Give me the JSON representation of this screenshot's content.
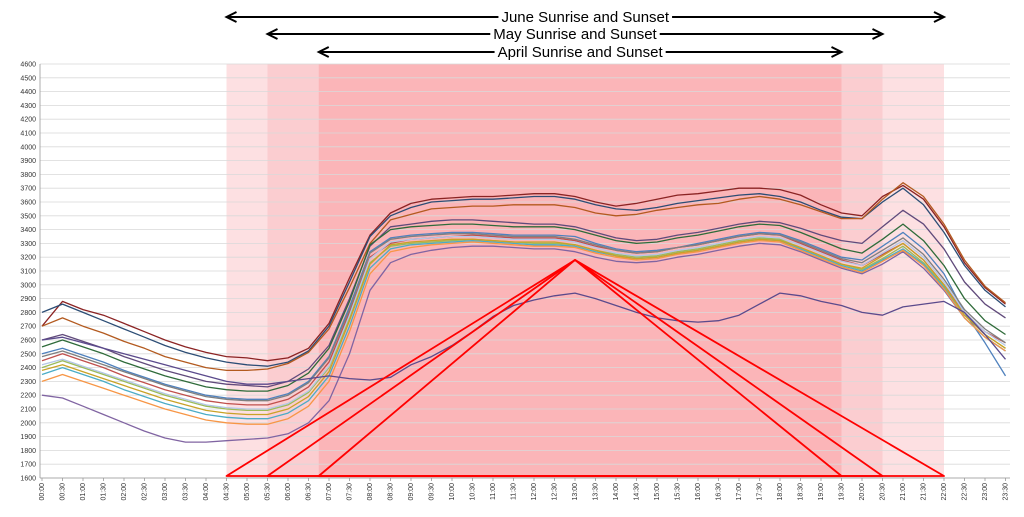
{
  "chart_data": {
    "type": "line",
    "title": "",
    "xlabel": "",
    "ylabel": "",
    "ylim": [
      1600,
      4600
    ],
    "y_ticks": [
      1600,
      1700,
      1800,
      1900,
      2000,
      2100,
      2200,
      2300,
      2400,
      2500,
      2600,
      2700,
      2800,
      2900,
      3000,
      3100,
      3200,
      3300,
      3400,
      3500,
      3600,
      3700,
      3800,
      3900,
      4000,
      4100,
      4200,
      4300,
      4400,
      4500,
      4600
    ],
    "x_ticks": [
      "00:00",
      "00:30",
      "01:00",
      "01:30",
      "02:00",
      "02:30",
      "03:00",
      "03:30",
      "04:00",
      "04:30",
      "05:00",
      "05:30",
      "06:00",
      "06:30",
      "07:00",
      "07:30",
      "08:00",
      "08:30",
      "09:00",
      "09:30",
      "10:00",
      "10:30",
      "11:00",
      "11:30",
      "12:00",
      "12:30",
      "13:00",
      "13:30",
      "14:00",
      "14:30",
      "15:00",
      "15:30",
      "16:00",
      "16:30",
      "17:00",
      "17:30",
      "18:00",
      "18:30",
      "19:00",
      "19:30",
      "20:00",
      "20:30",
      "21:00",
      "21:30",
      "22:00",
      "22:30",
      "23:00",
      "23:30"
    ],
    "grid": true,
    "legend": "none",
    "colors": {
      "june_band": "#fde0e2",
      "may_band": "#fbcdd0",
      "april_band": "#fbb5b8",
      "triangle": "#ff0000",
      "arrow": "#000000",
      "gridline": "#d9d9d9"
    },
    "bands": [
      {
        "label": "June Sunrise and Sunset",
        "start": "04:30",
        "end": "22:00",
        "peak": "13:00"
      },
      {
        "label": "May Sunrise and Sunset",
        "start": "05:30",
        "end": "20:30",
        "peak": "13:00"
      },
      {
        "label": "April Sunrise and Sunset",
        "start": "06:45",
        "end": "19:30",
        "peak": "13:00"
      }
    ],
    "triangle_peak_value": 3180,
    "series": [
      {
        "color": "#8b2323",
        "values": [
          2700,
          2880,
          2820,
          2780,
          2720,
          2660,
          2600,
          2550,
          2510,
          2480,
          2470,
          2450,
          2470,
          2540,
          2720,
          3050,
          3360,
          3520,
          3590,
          3620,
          3630,
          3640,
          3640,
          3650,
          3660,
          3660,
          3640,
          3600,
          3570,
          3590,
          3620,
          3650,
          3660,
          3680,
          3700,
          3700,
          3690,
          3650,
          3580,
          3520,
          3500,
          3640,
          3720,
          3620,
          3420,
          3160,
          2980,
          2860
        ]
      },
      {
        "color": "#2c4d75",
        "values": [
          2800,
          2860,
          2800,
          2740,
          2680,
          2620,
          2560,
          2510,
          2470,
          2440,
          2420,
          2410,
          2440,
          2520,
          2700,
          3020,
          3350,
          3500,
          3560,
          3600,
          3610,
          3620,
          3620,
          3630,
          3640,
          3640,
          3620,
          3580,
          3550,
          3540,
          3560,
          3590,
          3610,
          3630,
          3650,
          3660,
          3640,
          3600,
          3540,
          3490,
          3480,
          3600,
          3700,
          3580,
          3380,
          3140,
          2960,
          2840
        ]
      },
      {
        "color": "#b35a1f",
        "values": [
          2700,
          2760,
          2700,
          2650,
          2590,
          2540,
          2480,
          2440,
          2400,
          2380,
          2380,
          2390,
          2430,
          2510,
          2680,
          2980,
          3300,
          3470,
          3510,
          3550,
          3560,
          3570,
          3570,
          3580,
          3580,
          3580,
          3560,
          3520,
          3500,
          3510,
          3540,
          3560,
          3580,
          3590,
          3620,
          3640,
          3620,
          3580,
          3530,
          3480,
          3480,
          3620,
          3740,
          3640,
          3440,
          3180,
          2990,
          2870
        ]
      },
      {
        "color": "#604a7b",
        "values": [
          2600,
          2640,
          2590,
          2540,
          2480,
          2430,
          2380,
          2340,
          2300,
          2280,
          2270,
          2260,
          2300,
          2390,
          2560,
          2900,
          3280,
          3420,
          3440,
          3460,
          3470,
          3470,
          3460,
          3450,
          3440,
          3440,
          3420,
          3380,
          3340,
          3320,
          3330,
          3360,
          3380,
          3410,
          3440,
          3460,
          3450,
          3410,
          3360,
          3320,
          3300,
          3420,
          3540,
          3440,
          3260,
          3020,
          2860,
          2760
        ]
      },
      {
        "color": "#4f81bd",
        "values": [
          2500,
          2540,
          2490,
          2440,
          2380,
          2330,
          2280,
          2240,
          2200,
          2180,
          2170,
          2170,
          2210,
          2300,
          2480,
          2840,
          3240,
          3340,
          3360,
          3370,
          3380,
          3380,
          3370,
          3360,
          3360,
          3360,
          3350,
          3300,
          3260,
          3240,
          3250,
          3270,
          3300,
          3330,
          3360,
          3380,
          3370,
          3320,
          3260,
          3200,
          3180,
          3280,
          3380,
          3260,
          3080,
          2800,
          2580,
          2340
        ]
      },
      {
        "color": "#c0504d",
        "values": [
          2450,
          2500,
          2450,
          2400,
          2340,
          2290,
          2240,
          2200,
          2160,
          2140,
          2130,
          2130,
          2170,
          2260,
          2440,
          2800,
          3200,
          3300,
          3330,
          3340,
          3350,
          3360,
          3350,
          3340,
          3340,
          3340,
          3320,
          3280,
          3250,
          3230,
          3240,
          3270,
          3290,
          3320,
          3350,
          3370,
          3360,
          3300,
          3240,
          3180,
          3140,
          3220,
          3300,
          3180,
          3000,
          2800,
          2660,
          2580
        ]
      },
      {
        "color": "#9bbb59",
        "values": [
          2400,
          2450,
          2400,
          2350,
          2300,
          2250,
          2200,
          2160,
          2120,
          2100,
          2090,
          2090,
          2130,
          2220,
          2400,
          2760,
          3160,
          3280,
          3300,
          3310,
          3320,
          3330,
          3320,
          3310,
          3300,
          3300,
          3290,
          3250,
          3220,
          3200,
          3210,
          3240,
          3260,
          3290,
          3320,
          3340,
          3330,
          3270,
          3210,
          3150,
          3110,
          3190,
          3280,
          3160,
          2990,
          2780,
          2640,
          2540
        ]
      },
      {
        "color": "#8064a2",
        "values": [
          2200,
          2180,
          2120,
          2060,
          2000,
          1940,
          1890,
          1860,
          1860,
          1870,
          1880,
          1890,
          1920,
          2000,
          2160,
          2500,
          2960,
          3160,
          3220,
          3250,
          3270,
          3280,
          3280,
          3270,
          3260,
          3260,
          3240,
          3200,
          3170,
          3160,
          3170,
          3200,
          3220,
          3250,
          3280,
          3300,
          3290,
          3240,
          3180,
          3120,
          3080,
          3150,
          3240,
          3120,
          2960,
          2760,
          2620,
          2520
        ]
      },
      {
        "color": "#4bacc6",
        "values": [
          2350,
          2400,
          2350,
          2300,
          2240,
          2190,
          2140,
          2100,
          2060,
          2040,
          2030,
          2030,
          2070,
          2160,
          2340,
          2700,
          3120,
          3260,
          3290,
          3300,
          3310,
          3320,
          3310,
          3300,
          3290,
          3290,
          3280,
          3240,
          3210,
          3190,
          3200,
          3230,
          3250,
          3280,
          3310,
          3330,
          3320,
          3260,
          3200,
          3140,
          3100,
          3180,
          3260,
          3150,
          2980,
          2760,
          2620,
          2520
        ]
      },
      {
        "color": "#f79646",
        "values": [
          2300,
          2350,
          2300,
          2250,
          2200,
          2150,
          2100,
          2060,
          2020,
          2000,
          1990,
          1990,
          2030,
          2120,
          2300,
          2660,
          3080,
          3240,
          3270,
          3290,
          3300,
          3310,
          3300,
          3290,
          3280,
          3280,
          3270,
          3230,
          3200,
          3180,
          3190,
          3220,
          3240,
          3270,
          3300,
          3320,
          3310,
          3250,
          3190,
          3130,
          3090,
          3170,
          3250,
          3140,
          2970,
          2760,
          2620,
          2520
        ]
      },
      {
        "color": "#2f6b3a",
        "values": [
          2550,
          2600,
          2550,
          2500,
          2440,
          2390,
          2340,
          2300,
          2260,
          2240,
          2230,
          2230,
          2270,
          2360,
          2540,
          2880,
          3290,
          3400,
          3420,
          3430,
          3440,
          3440,
          3430,
          3420,
          3420,
          3420,
          3400,
          3360,
          3320,
          3300,
          3310,
          3340,
          3360,
          3390,
          3420,
          3440,
          3430,
          3380,
          3320,
          3260,
          3230,
          3330,
          3440,
          3320,
          3140,
          2900,
          2740,
          2640
        ]
      },
      {
        "color": "#7f7f7f",
        "values": [
          2480,
          2520,
          2470,
          2420,
          2370,
          2320,
          2270,
          2230,
          2190,
          2170,
          2160,
          2160,
          2200,
          2290,
          2470,
          2820,
          3230,
          3330,
          3350,
          3360,
          3370,
          3370,
          3360,
          3350,
          3350,
          3350,
          3330,
          3290,
          3250,
          3230,
          3240,
          3270,
          3290,
          3320,
          3350,
          3370,
          3360,
          3310,
          3250,
          3190,
          3160,
          3250,
          3340,
          3220,
          3040,
          2820,
          2680,
          2580
        ]
      },
      {
        "color": "#b4c7e7",
        "values": [
          2420,
          2460,
          2410,
          2360,
          2310,
          2260,
          2210,
          2170,
          2130,
          2110,
          2100,
          2100,
          2140,
          2230,
          2410,
          2780,
          3190,
          3310,
          3330,
          3340,
          3350,
          3350,
          3340,
          3330,
          3330,
          3330,
          3310,
          3270,
          3230,
          3210,
          3220,
          3250,
          3270,
          3300,
          3330,
          3350,
          3340,
          3290,
          3230,
          3170,
          3140,
          3230,
          3320,
          3200,
          3020,
          2800,
          2660,
          2560
        ]
      },
      {
        "color": "#c9a227",
        "values": [
          2380,
          2420,
          2370,
          2320,
          2270,
          2220,
          2170,
          2130,
          2090,
          2070,
          2060,
          2060,
          2100,
          2190,
          2370,
          2740,
          3150,
          3290,
          3310,
          3320,
          3330,
          3330,
          3320,
          3310,
          3310,
          3310,
          3290,
          3250,
          3210,
          3190,
          3200,
          3230,
          3250,
          3280,
          3310,
          3330,
          3320,
          3270,
          3210,
          3150,
          3120,
          3210,
          3300,
          3180,
          3000,
          2780,
          2640,
          2540
        ]
      },
      {
        "color": "#5b4a8c",
        "values": [
          2600,
          2620,
          2580,
          2540,
          2500,
          2460,
          2420,
          2380,
          2340,
          2300,
          2280,
          2280,
          2300,
          2320,
          2340,
          2320,
          2310,
          2330,
          2420,
          2480,
          2560,
          2660,
          2770,
          2850,
          2890,
          2920,
          2940,
          2900,
          2850,
          2800,
          2760,
          2740,
          2730,
          2740,
          2780,
          2860,
          2940,
          2920,
          2880,
          2850,
          2800,
          2780,
          2840,
          2860,
          2880,
          2800,
          2640,
          2460
        ]
      }
    ]
  }
}
